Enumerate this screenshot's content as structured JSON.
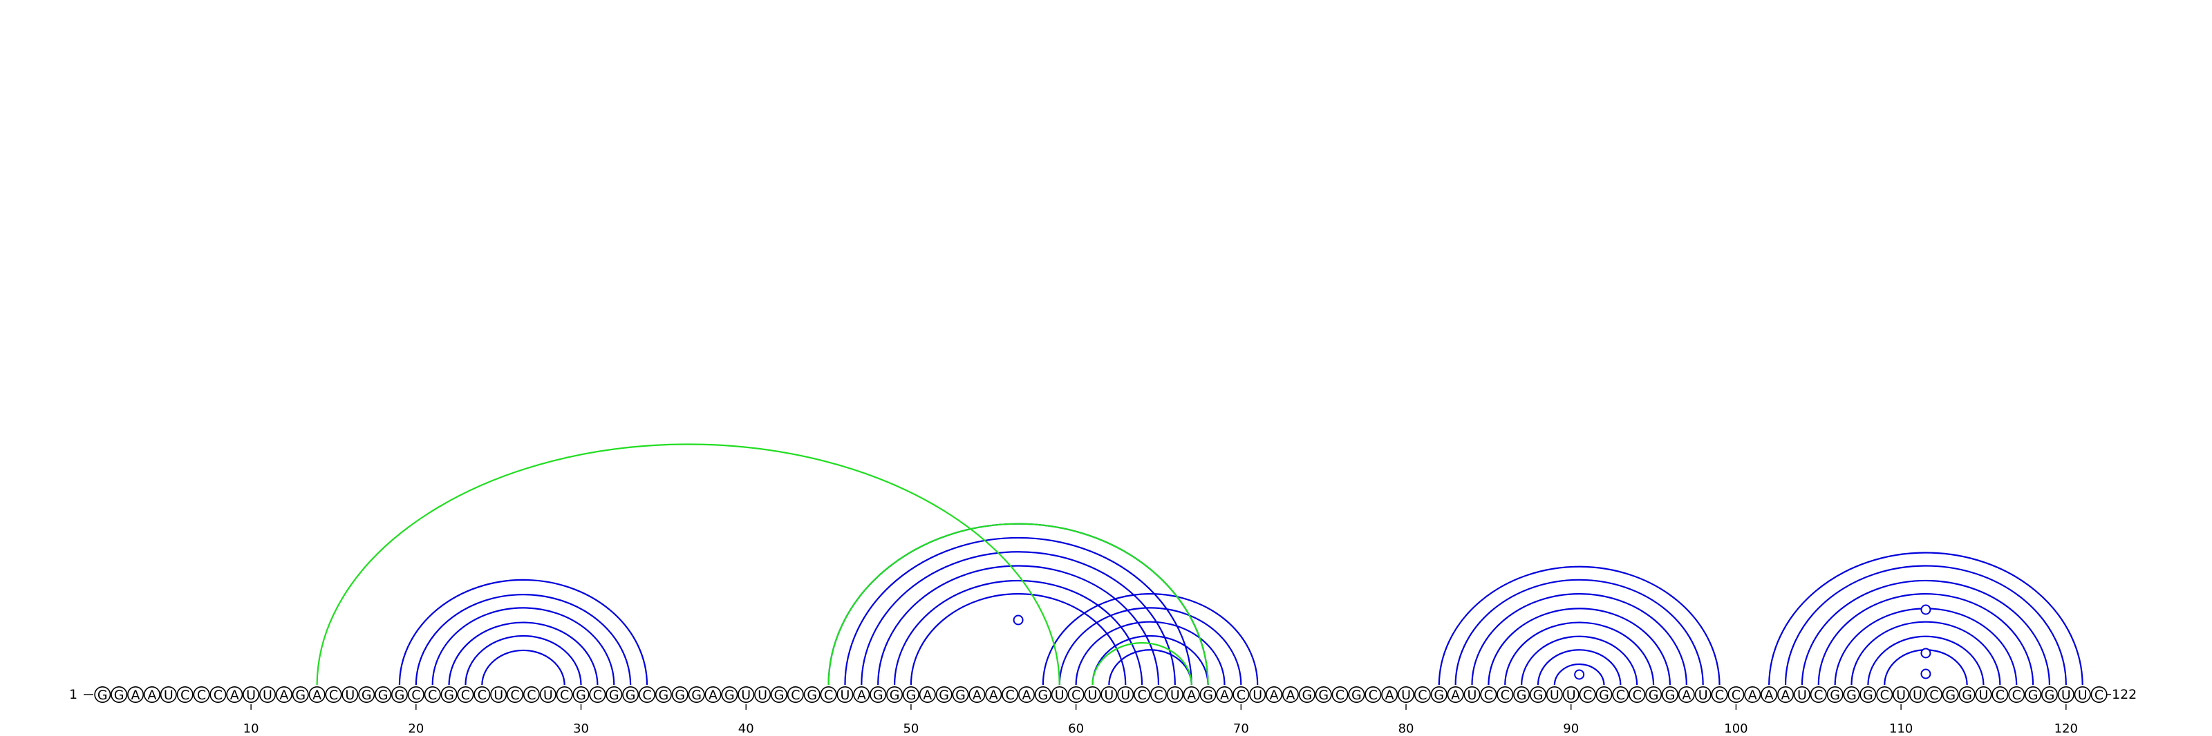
{
  "colors": {
    "primary_arc": "#0000dd",
    "pseudoknot_arc": "#22dd22",
    "base_fill": "#ffffff",
    "base_stroke": "#000000"
  },
  "chart_data": {
    "type": "arc-diagram",
    "sequence": "GGAAUCCCAUUAGACUGGGCCGCCUCCUCGCGGCGGGAGUUGCGCUAGGGAGGAACAGUCUUUCCUAGACUAAGGCGCAUCGAUCCGGUUCGCCGGAUCCAAAUCGGGCUUCGGUCCGGUUC",
    "start_label": "1",
    "end_label": "122",
    "ticks": [
      "10",
      "20",
      "30",
      "40",
      "50",
      "60",
      "70",
      "80",
      "90",
      "100",
      "110",
      "120"
    ],
    "primary_pairs": [
      [
        19,
        34
      ],
      [
        20,
        33
      ],
      [
        21,
        32
      ],
      [
        22,
        31
      ],
      [
        23,
        30
      ],
      [
        24,
        29
      ],
      [
        45,
        68
      ],
      [
        46,
        67
      ],
      [
        47,
        66
      ],
      [
        48,
        65
      ],
      [
        49,
        64
      ],
      [
        50,
        63
      ],
      [
        58,
        71
      ],
      [
        59,
        70
      ],
      [
        60,
        69
      ],
      [
        61,
        68
      ],
      [
        62,
        67
      ],
      [
        82,
        99
      ],
      [
        83,
        98
      ],
      [
        84,
        97
      ],
      [
        85,
        96
      ],
      [
        86,
        95
      ],
      [
        87,
        94
      ],
      [
        88,
        93
      ],
      [
        89,
        92
      ],
      [
        102,
        121
      ],
      [
        103,
        120
      ],
      [
        104,
        119
      ],
      [
        105,
        118
      ],
      [
        106,
        117
      ],
      [
        107,
        116
      ],
      [
        108,
        115
      ],
      [
        109,
        114
      ]
    ],
    "pseudoknot_pairs": [
      [
        14,
        59
      ],
      [
        45,
        68
      ],
      [
        61,
        67
      ]
    ],
    "unpaired_markers": [
      56.5,
      90.5,
      111.5,
      111.5,
      111.5
    ]
  }
}
